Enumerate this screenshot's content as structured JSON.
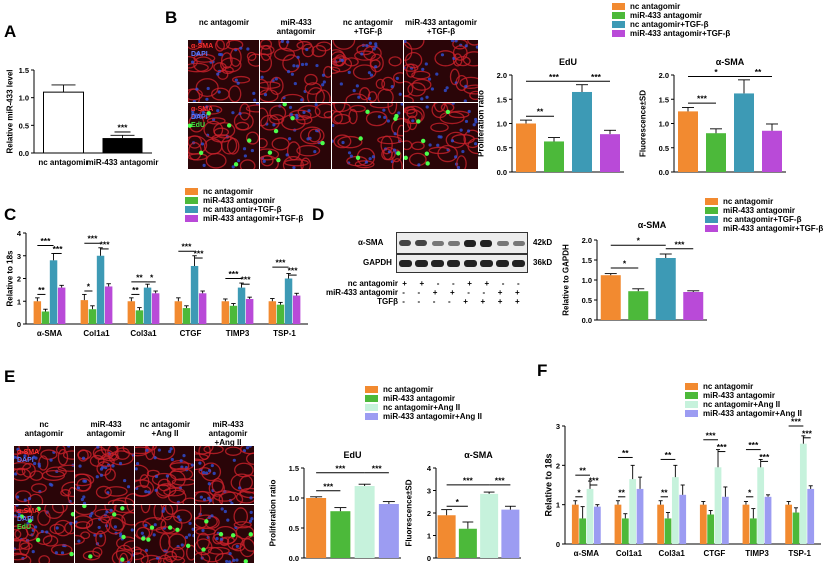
{
  "colors": {
    "orange": "#f28a30",
    "green": "#4cb93a",
    "teal": "#3d9ab5",
    "purple": "#b94ad8",
    "mint": "#c6f2dc",
    "lavender": "#9c9cf2",
    "black": "#000000",
    "white": "#ffffff"
  },
  "panel_letters": {
    "a": "A",
    "b": "B",
    "c": "C",
    "d": "D",
    "e": "E",
    "f": "F"
  },
  "panel_b": {
    "col_headers": [
      "nc antagomir",
      "miR-433\nantagomir",
      "nc antagomir\n+TGF-β",
      "miR-433 antagomir\n+TGF-β"
    ],
    "row1_labels": [
      "α-SMA",
      "DAPI"
    ],
    "row2_labels": [
      "α-SMA",
      "DAPI",
      "EdU"
    ],
    "legend": [
      "nc antagomir",
      "miR-433 antagomir",
      "nc antagomir+TGF-β",
      "miR-433 antagomir+TGF-β"
    ]
  },
  "panel_c": {
    "legend": [
      "nc antagomir",
      "miR-433 antagomir",
      "nc antagomir+TGF-β",
      "miR-433 antagomir+TGF-β"
    ]
  },
  "panel_d": {
    "bands": [
      "α-SMA",
      "GAPDH"
    ],
    "sizes": [
      "42kD",
      "36kD"
    ],
    "conditions": [
      {
        "label": "nc antagomir",
        "signs": [
          "+",
          "+",
          "-",
          "-",
          "+",
          "+",
          "-",
          "-"
        ]
      },
      {
        "label": "miR-433 antagomir",
        "signs": [
          "-",
          "-",
          "+",
          "+",
          "-",
          "-",
          "+",
          "+"
        ]
      },
      {
        "label": "TGFβ",
        "signs": [
          "-",
          "-",
          "-",
          "-",
          "+",
          "+",
          "+",
          "+"
        ]
      }
    ],
    "legend": [
      "nc antagomir",
      "miR-433 antagomir",
      "nc antagomir+TGF-β",
      "miR-433 antagomir+TGF-β"
    ]
  },
  "panel_e": {
    "col_headers": [
      "nc\nantagomir",
      "miR-433\nantagomir",
      "nc antagomir\n+Ang II",
      "miR-433 antagomir\n+Ang II"
    ],
    "row1_labels": [
      "α-SMA",
      "DAPI"
    ],
    "row2_labels": [
      "α-SMA",
      "DAPI",
      "EdU"
    ],
    "legend": [
      "nc antagomir",
      "miR-433 antagomir",
      "nc antagomir+Ang II",
      "miR-433 antagomir+Ang II"
    ]
  },
  "panel_f": {
    "legend": [
      "nc antagomir",
      "miR-433 antagomir",
      "nc antagomir+Ang II",
      "miR-433 antagomir+Ang II"
    ]
  },
  "chart_data": [
    {
      "id": "A",
      "type": "bar",
      "title": "",
      "ylabel": "Relative miR-433 level",
      "ylim": [
        0,
        1.5
      ],
      "yticks": [
        "0.0",
        "0.5",
        "1.0",
        "1.5"
      ],
      "categories": [
        "nc antagomir",
        "miR-433 antagomir"
      ],
      "values": [
        1.1,
        0.27
      ],
      "errors": [
        0.13,
        0.05
      ],
      "colors": [
        "#ffffff",
        "#000000"
      ],
      "annotations": [
        {
          "text": "***",
          "x1": 1,
          "x2": 1,
          "y": 0.38
        }
      ]
    },
    {
      "id": "B-EdU",
      "type": "bar",
      "title": "EdU",
      "ylabel": "Proliferation ratio",
      "ylim": [
        0,
        2.0
      ],
      "yticks": [
        "0.0",
        "0.5",
        "1.0",
        "1.5",
        "2.0"
      ],
      "categories": [
        "nc antagomir",
        "miR-433 antagomir",
        "nc antagomir+TGF-β",
        "miR-433 antagomir+TGF-β"
      ],
      "values": [
        1.0,
        0.63,
        1.65,
        0.78
      ],
      "errors": [
        0.07,
        0.08,
        0.15,
        0.08
      ],
      "colors": [
        "#f28a30",
        "#4cb93a",
        "#3d9ab5",
        "#b94ad8"
      ],
      "annotations": [
        {
          "text": "**",
          "x1": 0,
          "x2": 1,
          "y": 1.15
        },
        {
          "text": "***",
          "x1": 0,
          "x2": 2,
          "y": 1.87
        },
        {
          "text": "***",
          "x1": 2,
          "x2": 3,
          "y": 1.87
        }
      ]
    },
    {
      "id": "B-aSMA",
      "type": "bar",
      "title": "α-SMA",
      "ylabel": "Fluorescence±SD",
      "ylim": [
        0,
        2.0
      ],
      "yticks": [
        "0.0",
        "0.5",
        "1.0",
        "1.5",
        "2.0"
      ],
      "categories": [
        "nc antagomir",
        "miR-433 antagomir",
        "nc antagomir+TGF-β",
        "miR-433 antagomir+TGF-β"
      ],
      "values": [
        1.25,
        0.8,
        1.62,
        0.85
      ],
      "errors": [
        0.08,
        0.09,
        0.28,
        0.14
      ],
      "colors": [
        "#f28a30",
        "#4cb93a",
        "#3d9ab5",
        "#b94ad8"
      ],
      "annotations": [
        {
          "text": "***",
          "x1": 0,
          "x2": 1,
          "y": 1.42
        },
        {
          "text": "*",
          "x1": 0,
          "x2": 2,
          "y": 1.97
        },
        {
          "text": "**",
          "x1": 2,
          "x2": 3,
          "y": 1.97
        }
      ]
    },
    {
      "id": "C",
      "type": "bar",
      "title": "",
      "ylabel": "Relative to 18s",
      "ylim": [
        0,
        4
      ],
      "yticks": [
        "0",
        "1",
        "2",
        "3",
        "4"
      ],
      "categories": [
        "α-SMA",
        "Col1a1",
        "Col3a1",
        "CTGF",
        "TIMP3",
        "TSP-1"
      ],
      "series": [
        {
          "name": "nc antagomir",
          "values": [
            1.0,
            1.05,
            1.0,
            1.0,
            1.0,
            1.0
          ],
          "errors": [
            0.15,
            0.25,
            0.15,
            0.15,
            0.1,
            0.12
          ]
        },
        {
          "name": "miR-433 antagomir",
          "values": [
            0.55,
            0.65,
            0.6,
            0.7,
            0.8,
            0.85
          ],
          "errors": [
            0.1,
            0.15,
            0.12,
            0.1,
            0.1,
            0.1
          ]
        },
        {
          "name": "nc antagomir+TGF-β",
          "values": [
            2.8,
            3.0,
            1.6,
            2.55,
            1.6,
            2.0
          ],
          "errors": [
            0.3,
            0.35,
            0.15,
            0.45,
            0.2,
            0.22
          ]
        },
        {
          "name": "miR-433 antagomir+TGF-β",
          "values": [
            1.6,
            1.65,
            1.35,
            1.35,
            1.1,
            1.25
          ],
          "errors": [
            0.1,
            0.12,
            0.1,
            0.1,
            0.08,
            0.1
          ]
        }
      ],
      "colors": [
        "#f28a30",
        "#4cb93a",
        "#3d9ab5",
        "#b94ad8"
      ],
      "annotations": [
        {
          "text": "**",
          "g": 0,
          "x1": 0,
          "x2": 1,
          "y": 1.3
        },
        {
          "text": "***",
          "g": 0,
          "x1": 0,
          "x2": 2,
          "y": 3.45
        },
        {
          "text": "***",
          "g": 0,
          "x1": 2,
          "x2": 3,
          "y": 3.1
        },
        {
          "text": "*",
          "g": 1,
          "x1": 0,
          "x2": 1,
          "y": 1.45
        },
        {
          "text": "***",
          "g": 1,
          "x1": 0,
          "x2": 2,
          "y": 3.55
        },
        {
          "text": "***",
          "g": 1,
          "x1": 2,
          "x2": 3,
          "y": 3.3
        },
        {
          "text": "**",
          "g": 2,
          "x1": 0,
          "x2": 1,
          "y": 1.3
        },
        {
          "text": "**",
          "g": 2,
          "x1": 0,
          "x2": 2,
          "y": 1.85
        },
        {
          "text": "*",
          "g": 2,
          "x1": 2,
          "x2": 3,
          "y": 1.85
        },
        {
          "text": "***",
          "g": 3,
          "x1": 0,
          "x2": 2,
          "y": 3.2
        },
        {
          "text": "***",
          "g": 3,
          "x1": 2,
          "x2": 3,
          "y": 2.9
        },
        {
          "text": "***",
          "g": 4,
          "x1": 0,
          "x2": 2,
          "y": 2.0
        },
        {
          "text": "***",
          "g": 4,
          "x1": 2,
          "x2": 3,
          "y": 1.75
        },
        {
          "text": "***",
          "g": 5,
          "x1": 0,
          "x2": 2,
          "y": 2.5
        },
        {
          "text": "***",
          "g": 5,
          "x1": 2,
          "x2": 3,
          "y": 2.15
        }
      ]
    },
    {
      "id": "D",
      "type": "bar",
      "title": "α-SMA",
      "ylabel": "Relative to GAPDH",
      "ylim": [
        0,
        2.0
      ],
      "yticks": [
        "0.0",
        "0.5",
        "1.0",
        "1.5",
        "2.0"
      ],
      "categories": [
        "nc antagomir",
        "miR-433 antagomir",
        "nc antagomir+TGF-β",
        "miR-433 antagomir+TGF-β"
      ],
      "values": [
        1.12,
        0.72,
        1.55,
        0.7
      ],
      "errors": [
        0.04,
        0.06,
        0.1,
        0.03
      ],
      "colors": [
        "#f28a30",
        "#4cb93a",
        "#3d9ab5",
        "#b94ad8"
      ],
      "annotations": [
        {
          "text": "*",
          "x1": 0,
          "x2": 1,
          "y": 1.3
        },
        {
          "text": "*",
          "x1": 0,
          "x2": 2,
          "y": 1.87
        },
        {
          "text": "***",
          "x1": 2,
          "x2": 3,
          "y": 1.78
        }
      ]
    },
    {
      "id": "E-EdU",
      "type": "bar",
      "title": "EdU",
      "ylabel": "Proliferation ratio",
      "ylim": [
        0,
        1.5
      ],
      "yticks": [
        "0.0",
        "0.5",
        "1.0",
        "1.5"
      ],
      "categories": [
        "nc antagomir",
        "miR-433 antagomir",
        "nc antagomir+Ang II",
        "miR-433 antagomir+Ang II"
      ],
      "values": [
        1.0,
        0.78,
        1.2,
        0.9
      ],
      "errors": [
        0.02,
        0.06,
        0.03,
        0.04
      ],
      "colors": [
        "#f28a30",
        "#4cb93a",
        "#c6f2dc",
        "#9c9cf2"
      ],
      "annotations": [
        {
          "text": "***",
          "x1": 0,
          "x2": 1,
          "y": 1.12
        },
        {
          "text": "***",
          "x1": 0,
          "x2": 2,
          "y": 1.42
        },
        {
          "text": "***",
          "x1": 2,
          "x2": 3,
          "y": 1.42
        }
      ]
    },
    {
      "id": "E-aSMA",
      "type": "bar",
      "title": "α-SMA",
      "ylabel": "Fluorescence±SD",
      "ylim": [
        0,
        4
      ],
      "yticks": [
        "0",
        "1",
        "2",
        "3",
        "4"
      ],
      "categories": [
        "nc antagomir",
        "miR-433 antagomir",
        "nc antagomir+Ang II",
        "miR-433 antagomir+Ang II"
      ],
      "values": [
        1.9,
        1.3,
        2.85,
        2.15
      ],
      "errors": [
        0.25,
        0.3,
        0.08,
        0.15
      ],
      "colors": [
        "#f28a30",
        "#4cb93a",
        "#c6f2dc",
        "#9c9cf2"
      ],
      "annotations": [
        {
          "text": "*",
          "x1": 0,
          "x2": 1,
          "y": 2.3
        },
        {
          "text": "***",
          "x1": 0,
          "x2": 2,
          "y": 3.25
        },
        {
          "text": "***",
          "x1": 2,
          "x2": 3,
          "y": 3.25
        }
      ]
    },
    {
      "id": "F",
      "type": "bar",
      "title": "",
      "ylabel": "Relative to 18s",
      "ylim": [
        0,
        3
      ],
      "yticks": [
        "0",
        "1",
        "2",
        "3"
      ],
      "categories": [
        "α-SMA",
        "Col1a1",
        "Col3a1",
        "CTGF",
        "TIMP3",
        "TSP-1"
      ],
      "series": [
        {
          "name": "nc antagomir",
          "values": [
            1.0,
            1.0,
            1.0,
            1.0,
            1.0,
            1.0
          ],
          "errors": [
            0.1,
            0.1,
            0.1,
            0.08,
            0.08,
            0.08
          ]
        },
        {
          "name": "miR-433 antagomir",
          "values": [
            0.65,
            0.65,
            0.65,
            0.75,
            0.65,
            0.8
          ],
          "errors": [
            0.3,
            0.12,
            0.15,
            0.1,
            0.25,
            0.12
          ]
        },
        {
          "name": "nc antagomir+Ang II",
          "values": [
            1.4,
            1.65,
            1.7,
            1.95,
            1.95,
            2.55
          ],
          "errors": [
            0.2,
            0.35,
            0.3,
            0.45,
            0.2,
            0.2
          ]
        },
        {
          "name": "miR-433 antagomir+Ang II",
          "values": [
            0.95,
            1.4,
            1.25,
            1.2,
            1.2,
            1.4
          ],
          "errors": [
            0.05,
            0.3,
            0.25,
            0.25,
            0.05,
            0.08
          ]
        }
      ],
      "colors": [
        "#f28a30",
        "#4cb93a",
        "#c6f2dc",
        "#9c9cf2"
      ],
      "annotations": [
        {
          "text": "*",
          "g": 0,
          "x1": 0,
          "x2": 1,
          "y": 1.2
        },
        {
          "text": "**",
          "g": 0,
          "x1": 0,
          "x2": 2,
          "y": 1.75
        },
        {
          "text": "***",
          "g": 0,
          "x1": 2,
          "x2": 3,
          "y": 1.5
        },
        {
          "text": "**",
          "g": 1,
          "x1": 0,
          "x2": 1,
          "y": 1.2
        },
        {
          "text": "**",
          "g": 1,
          "x1": 0,
          "x2": 2,
          "y": 2.2
        },
        {
          "text": "**",
          "g": 2,
          "x1": 0,
          "x2": 1,
          "y": 1.2
        },
        {
          "text": "**",
          "g": 2,
          "x1": 0,
          "x2": 2,
          "y": 2.15
        },
        {
          "text": "***",
          "g": 3,
          "x1": 0,
          "x2": 2,
          "y": 2.65
        },
        {
          "text": "***",
          "g": 3,
          "x1": 2,
          "x2": 3,
          "y": 2.35
        },
        {
          "text": "*",
          "g": 4,
          "x1": 0,
          "x2": 1,
          "y": 1.2
        },
        {
          "text": "***",
          "g": 4,
          "x1": 0,
          "x2": 2,
          "y": 2.4
        },
        {
          "text": "***",
          "g": 4,
          "x1": 2,
          "x2": 3,
          "y": 2.1
        },
        {
          "text": "***",
          "g": 5,
          "x1": 0,
          "x2": 2,
          "y": 3.0
        },
        {
          "text": "***",
          "g": 5,
          "x1": 2,
          "x2": 3,
          "y": 2.7
        }
      ]
    }
  ]
}
